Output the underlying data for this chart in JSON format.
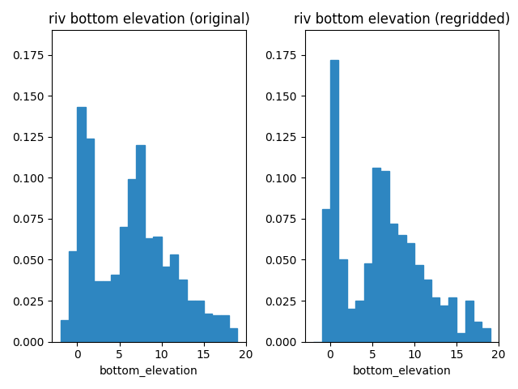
{
  "title1": "riv bottom elevation (original)",
  "title2": "riv bottom elevation (regridded)",
  "xlabel": "bottom_elevation",
  "bar_color": "#2e86c1",
  "orig_bin_edges": [
    -2,
    -1,
    0,
    1,
    2,
    3,
    4,
    5,
    6,
    7,
    8,
    9,
    10,
    11,
    12,
    13,
    14,
    15,
    16,
    17,
    18,
    19
  ],
  "orig_heights": [
    0.013,
    0.055,
    0.143,
    0.124,
    0.037,
    0.037,
    0.041,
    0.07,
    0.099,
    0.12,
    0.063,
    0.064,
    0.046,
    0.053,
    0.038,
    0.025,
    0.025,
    0.017,
    0.016,
    0.016,
    0.008
  ],
  "rg_bin_edges": [
    -2,
    -1,
    0,
    1,
    2,
    3,
    4,
    5,
    6,
    7,
    8,
    9,
    10,
    11,
    12,
    13,
    14,
    15,
    16,
    17,
    18,
    19
  ],
  "rg_heights": [
    0.0,
    0.081,
    0.172,
    0.05,
    0.02,
    0.025,
    0.048,
    0.106,
    0.104,
    0.072,
    0.065,
    0.06,
    0.047,
    0.038,
    0.027,
    0.022,
    0.027,
    0.005,
    0.025,
    0.012,
    0.008
  ],
  "ylim": [
    0,
    0.19
  ],
  "xlim": [
    -3,
    20
  ]
}
